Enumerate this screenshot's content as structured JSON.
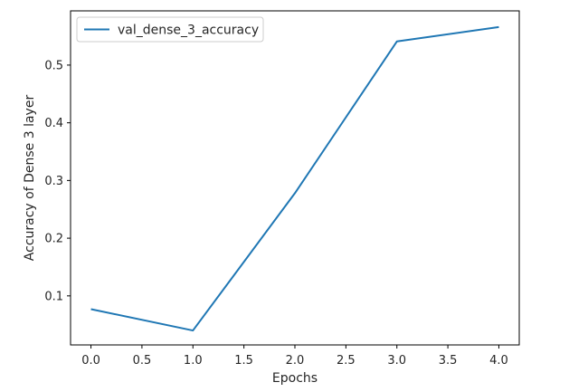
{
  "chart_data": {
    "type": "line",
    "title": "",
    "xlabel": "Epochs",
    "ylabel": "Accuracy of Dense 3 layer",
    "xlim": [
      -0.2,
      4.2
    ],
    "ylim": [
      0.015,
      0.594
    ],
    "xticks": [
      0.0,
      0.5,
      1.0,
      1.5,
      2.0,
      2.5,
      3.0,
      3.5,
      4.0
    ],
    "xtick_labels": [
      "0.0",
      "0.5",
      "1.0",
      "1.5",
      "2.0",
      "2.5",
      "3.0",
      "3.5",
      "4.0"
    ],
    "yticks": [
      0.1,
      0.2,
      0.3,
      0.4,
      0.5
    ],
    "ytick_labels": [
      "0.1",
      "0.2",
      "0.3",
      "0.4",
      "0.5"
    ],
    "grid": false,
    "legend_position": "top-left",
    "series": [
      {
        "name": "val_dense_3_accuracy",
        "color": "#1f77b4",
        "x": [
          0,
          1,
          2,
          3,
          4
        ],
        "y": [
          0.077,
          0.04,
          0.278,
          0.541,
          0.566
        ]
      }
    ]
  }
}
